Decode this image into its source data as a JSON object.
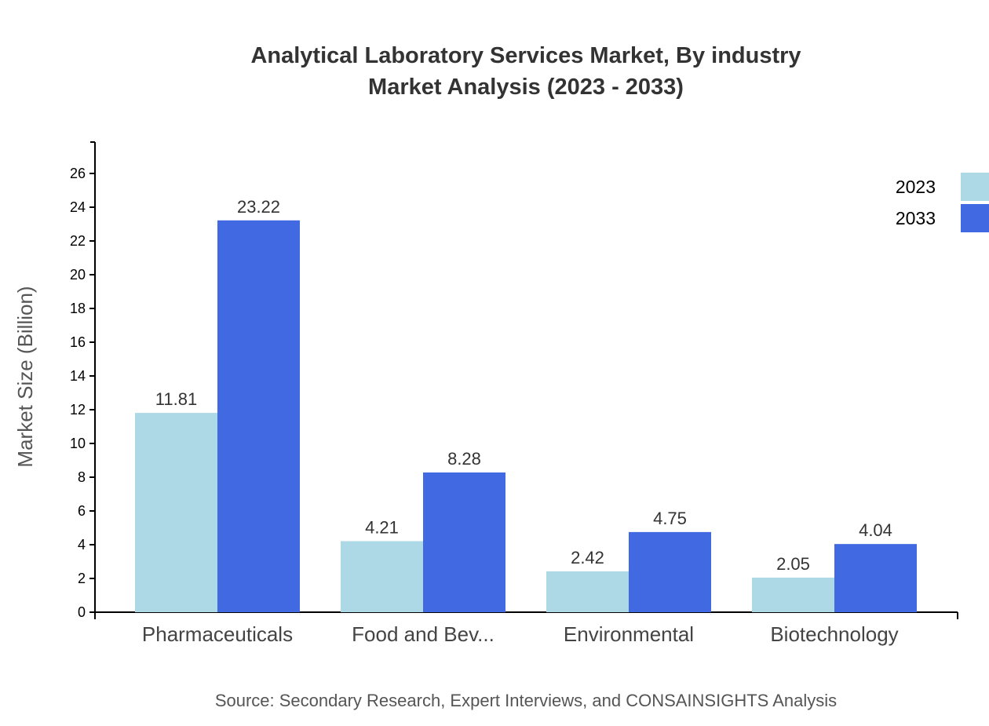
{
  "chart_data": {
    "type": "bar",
    "title_line1": "Analytical Laboratory Services Market, By industry",
    "title_line2": "Market Analysis (2023 - 2033)",
    "xlabel": "",
    "ylabel": "Market Size (Billion)",
    "ylim": [
      0,
      27.86
    ],
    "yticks": [
      0,
      2,
      4,
      6,
      8,
      10,
      12,
      14,
      16,
      18,
      20,
      22,
      24,
      26
    ],
    "grid": false,
    "legend_placement": "top-right",
    "categories": [
      "Pharmaceuticals",
      "Food and Bev...",
      "Environmental",
      "Biotechnology"
    ],
    "series": [
      {
        "name": "2023",
        "color": "#add8e6",
        "values": [
          11.81,
          4.21,
          2.42,
          2.05
        ]
      },
      {
        "name": "2033",
        "color": "#4169e1",
        "values": [
          23.22,
          8.28,
          4.75,
          4.04
        ]
      }
    ],
    "source": "Source: Secondary Research, Expert Interviews, and CONSAINSIGHTS Analysis"
  }
}
